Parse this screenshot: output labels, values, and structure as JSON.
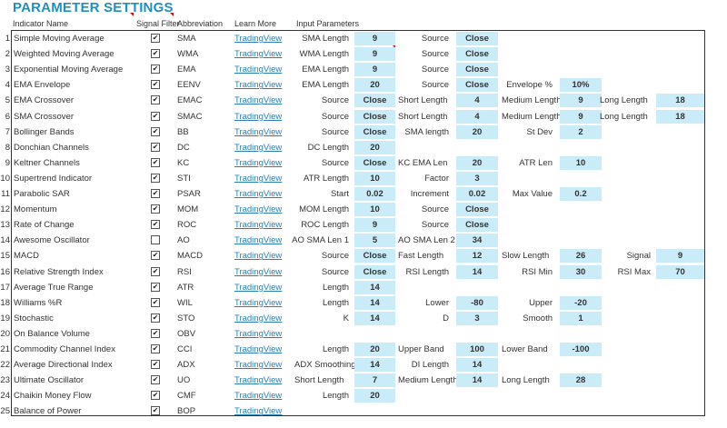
{
  "title": "PARAMETER SETTINGS",
  "headers": {
    "name": "Indicator Name",
    "signal": "Signal Filter",
    "abbr": "Abbreviation",
    "learn": "Learn More",
    "params": "Input Parameters"
  },
  "colors": {
    "title": "#1d8fc0",
    "input_cell": "#c9ecf8",
    "link": "#2a7fb0"
  },
  "rows": [
    {
      "num": "1",
      "name": "Simple Moving Average",
      "checked": true,
      "abbr": "SMA",
      "link": "TradingView",
      "params": [
        {
          "label": "SMA Length",
          "value": "9"
        },
        {
          "label": "Source",
          "value": "Close"
        }
      ]
    },
    {
      "num": "2",
      "name": "Weighted Moving Average",
      "checked": true,
      "abbr": "WMA",
      "link": "TradingView",
      "params": [
        {
          "label": "WMA Length",
          "value": "9"
        },
        {
          "label": "Source",
          "value": "Close"
        }
      ]
    },
    {
      "num": "3",
      "name": "Exponential Moving Average",
      "checked": true,
      "abbr": "EMA",
      "link": "TradingView",
      "params": [
        {
          "label": "EMA Length",
          "value": "9"
        },
        {
          "label": "Source",
          "value": "Close"
        }
      ]
    },
    {
      "num": "4",
      "name": "EMA Envelope",
      "checked": true,
      "abbr": "EENV",
      "link": "TradingView",
      "params": [
        {
          "label": "EMA Length",
          "value": "20"
        },
        {
          "label": "Source",
          "value": "Close"
        },
        {
          "label": "Envelope %",
          "value": "10%"
        }
      ]
    },
    {
      "num": "5",
      "name": "EMA Crossover",
      "checked": true,
      "abbr": "EMAC",
      "link": "TradingView",
      "params": [
        {
          "label": "Source",
          "value": "Close"
        },
        {
          "label": "Short Length",
          "value": "4"
        },
        {
          "label": "Medium Length",
          "value": "9"
        },
        {
          "label": "Long Length",
          "value": "18"
        }
      ]
    },
    {
      "num": "6",
      "name": "SMA Crossover",
      "checked": true,
      "abbr": "SMAC",
      "link": "TradingView",
      "params": [
        {
          "label": "Source",
          "value": "Close"
        },
        {
          "label": "Short Length",
          "value": "4"
        },
        {
          "label": "Medium Length",
          "value": "9"
        },
        {
          "label": "Long Length",
          "value": "18"
        }
      ]
    },
    {
      "num": "7",
      "name": "Bollinger Bands",
      "checked": true,
      "abbr": "BB",
      "link": "TradingView",
      "params": [
        {
          "label": "Source",
          "value": "Close"
        },
        {
          "label": "SMA length",
          "value": "20"
        },
        {
          "label": "St Dev",
          "value": "2"
        }
      ]
    },
    {
      "num": "8",
      "name": "Donchian Channels",
      "checked": true,
      "abbr": "DC",
      "link": "TradingView",
      "params": [
        {
          "label": "DC Length",
          "value": "20"
        }
      ]
    },
    {
      "num": "9",
      "name": "Keltner Channels",
      "checked": true,
      "abbr": "KC",
      "link": "TradingView",
      "params": [
        {
          "label": "Source",
          "value": "Close"
        },
        {
          "label": "KC EMA Len",
          "value": "20"
        },
        {
          "label": "ATR Len",
          "value": "10"
        }
      ]
    },
    {
      "num": "10",
      "name": "Supertrend Indicator",
      "checked": true,
      "abbr": "STI",
      "link": "TradingView",
      "params": [
        {
          "label": "ATR Length",
          "value": "10"
        },
        {
          "label": "Factor",
          "value": "3"
        }
      ]
    },
    {
      "num": "11",
      "name": "Parabolic SAR",
      "checked": true,
      "abbr": "PSAR",
      "link": "TradingView",
      "params": [
        {
          "label": "Start",
          "value": "0.02"
        },
        {
          "label": "Increment",
          "value": "0.02"
        },
        {
          "label": "Max Value",
          "value": "0.2"
        }
      ]
    },
    {
      "num": "12",
      "name": "Momentum",
      "checked": true,
      "abbr": "MOM",
      "link": "TradingView",
      "params": [
        {
          "label": "MOM Length",
          "value": "10"
        },
        {
          "label": "Source",
          "value": "Close"
        }
      ]
    },
    {
      "num": "13",
      "name": "Rate of Change",
      "checked": true,
      "abbr": "ROC",
      "link": "TradingView",
      "params": [
        {
          "label": "ROC Length",
          "value": "9"
        },
        {
          "label": "Source",
          "value": "Close"
        }
      ]
    },
    {
      "num": "14",
      "name": "Awesome Oscillator",
      "checked": false,
      "abbr": "AO",
      "link": "TradingView",
      "params": [
        {
          "label": "AO SMA Len 1",
          "value": "5"
        },
        {
          "label": "AO SMA Len 2",
          "value": "34"
        }
      ]
    },
    {
      "num": "15",
      "name": "MACD",
      "checked": true,
      "abbr": "MACD",
      "link": "TradingView",
      "params": [
        {
          "label": "Source",
          "value": "Close"
        },
        {
          "label": "Fast Length",
          "value": "12"
        },
        {
          "label": "Slow Length",
          "value": "26"
        },
        {
          "label": "Signal",
          "value": "9"
        }
      ]
    },
    {
      "num": "16",
      "name": "Relative Strength Index",
      "checked": true,
      "abbr": "RSI",
      "link": "TradingView",
      "params": [
        {
          "label": "Source",
          "value": "Close"
        },
        {
          "label": "RSI Length",
          "value": "14"
        },
        {
          "label": "RSI Min",
          "value": "30"
        },
        {
          "label": "RSI Max",
          "value": "70"
        }
      ]
    },
    {
      "num": "17",
      "name": "Average True Range",
      "checked": true,
      "abbr": "ATR",
      "link": "TradingView",
      "params": [
        {
          "label": "Length",
          "value": "14"
        }
      ]
    },
    {
      "num": "18",
      "name": "Williams %R",
      "checked": true,
      "abbr": "WIL",
      "link": "TradingView",
      "params": [
        {
          "label": "Length",
          "value": "14"
        },
        {
          "label": "Lower",
          "value": "-80"
        },
        {
          "label": "Upper",
          "value": "-20"
        }
      ]
    },
    {
      "num": "19",
      "name": "Stochastic",
      "checked": true,
      "abbr": "STO",
      "link": "TradingView",
      "params": [
        {
          "label": "K",
          "value": "14"
        },
        {
          "label": "D",
          "value": "3"
        },
        {
          "label": "Smooth",
          "value": "1"
        }
      ]
    },
    {
      "num": "20",
      "name": "On Balance Volume",
      "checked": true,
      "abbr": "OBV",
      "link": "TradingView",
      "params": []
    },
    {
      "num": "21",
      "name": "Commodity Channel Index",
      "checked": true,
      "abbr": "CCI",
      "link": "TradingView",
      "params": [
        {
          "label": "Length",
          "value": "20"
        },
        {
          "label": "Upper Band",
          "value": "100"
        },
        {
          "label": "Lower Band",
          "value": "-100"
        }
      ]
    },
    {
      "num": "22",
      "name": "Average Directional Index",
      "checked": true,
      "abbr": "ADX",
      "link": "TradingView",
      "params": [
        {
          "label": "ADX Smoothing",
          "value": "14"
        },
        {
          "label": "DI Length",
          "value": "14"
        }
      ]
    },
    {
      "num": "23",
      "name": "Ultimate Oscillator",
      "checked": true,
      "abbr": "UO",
      "link": "TradingView",
      "params": [
        {
          "label": "Short Length",
          "value": "7"
        },
        {
          "label": "Medium Length",
          "value": "14"
        },
        {
          "label": "Long Length",
          "value": "28"
        }
      ]
    },
    {
      "num": "24",
      "name": "Chaikin Money Flow",
      "checked": true,
      "abbr": "CMF",
      "link": "TradingView",
      "params": [
        {
          "label": "Length",
          "value": "20"
        }
      ]
    },
    {
      "num": "25",
      "name": "Balance of Power",
      "checked": true,
      "abbr": "BOP",
      "link": "TradingView",
      "params": []
    }
  ]
}
